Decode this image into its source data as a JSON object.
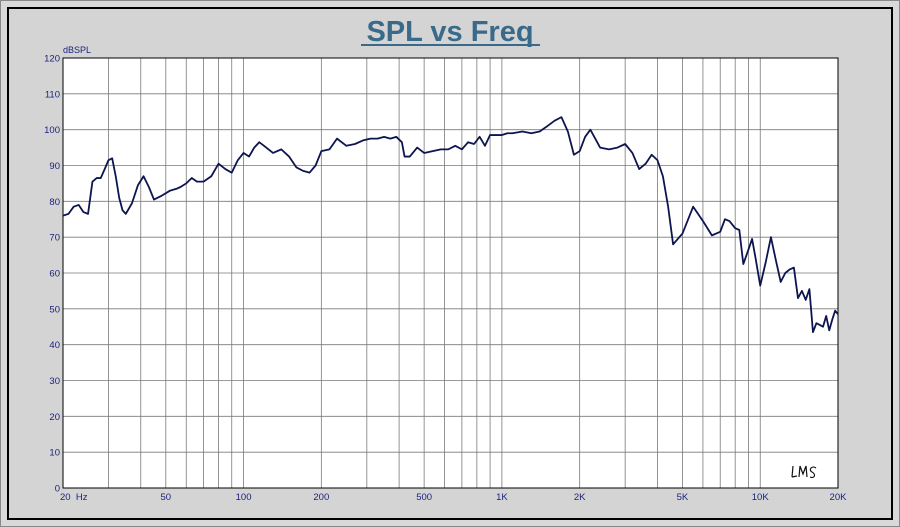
{
  "chart_data": {
    "type": "line",
    "title": "SPL vs Freq",
    "xlabel": "",
    "ylabel": "dBSPL",
    "x_scale": "log",
    "xlim": [
      20,
      20000
    ],
    "ylim": [
      0,
      120
    ],
    "grid": true,
    "x_tick_values": [
      20,
      50,
      100,
      200,
      500,
      1000,
      2000,
      5000,
      10000,
      20000
    ],
    "x_tick_labels": [
      "20  Hz",
      "50",
      "100",
      "200",
      "500",
      "1K",
      "2K",
      "5K",
      "10K",
      "20K"
    ],
    "y_ticks": [
      0,
      10,
      20,
      30,
      40,
      50,
      60,
      70,
      80,
      90,
      100,
      110,
      120
    ],
    "colors": {
      "line": "#0d1550",
      "grid": "#7a7a7a",
      "title": "#3a6a8a",
      "labels": "#1a237e"
    },
    "signature": "LMS",
    "series": [
      {
        "x": [
          20,
          21,
          22,
          23,
          24,
          25,
          26,
          27,
          28,
          29,
          30,
          31,
          32,
          33,
          34,
          35,
          37,
          39,
          41,
          43,
          45,
          48,
          52,
          55,
          57,
          60,
          63,
          66,
          70,
          75,
          80,
          85,
          90,
          95,
          100,
          105,
          110,
          115,
          120,
          130,
          140,
          150,
          160,
          170,
          180,
          190,
          200,
          215,
          230,
          250,
          270,
          290,
          310,
          330,
          350,
          370,
          390,
          410,
          420,
          440,
          470,
          500,
          540,
          580,
          620,
          660,
          700,
          740,
          780,
          820,
          860,
          900,
          950,
          1000,
          1050,
          1100,
          1200,
          1300,
          1400,
          1500,
          1600,
          1700,
          1800,
          1900,
          2000,
          2100,
          2200,
          2400,
          2600,
          2800,
          3000,
          3200,
          3400,
          3600,
          3800,
          4000,
          4200,
          4400,
          4600,
          5000,
          5500,
          6000,
          6500,
          7000,
          7300,
          7600,
          8000,
          8300,
          8600,
          9000,
          9300,
          9600,
          10000,
          10500,
          11000,
          11500,
          12000,
          12500,
          13000,
          13500,
          14000,
          14500,
          15000,
          15500,
          16000,
          16500,
          17000,
          17500,
          18000,
          18500,
          19000,
          19500,
          20000
        ],
        "y": [
          76,
          76.5,
          78.5,
          79,
          77,
          76.5,
          85.5,
          86.5,
          86.5,
          89,
          91.5,
          92,
          87,
          81,
          77.5,
          76.5,
          79.5,
          84.5,
          87,
          84,
          80.5,
          81.5,
          83,
          83.5,
          84,
          85,
          86.5,
          85.5,
          85.5,
          87,
          90.5,
          89,
          88,
          91.5,
          93.5,
          92.5,
          95,
          96.5,
          95.5,
          93.5,
          94.5,
          92.5,
          89.5,
          88.5,
          88,
          90,
          94,
          94.5,
          97.5,
          95.5,
          96,
          97,
          97.5,
          97.5,
          98,
          97.5,
          98,
          96.5,
          92.5,
          92.5,
          95,
          93.5,
          94,
          94.5,
          94.5,
          95.5,
          94.5,
          96.5,
          96,
          98,
          95.5,
          98.5,
          98.5,
          98.5,
          99,
          99,
          99.5,
          99,
          99.5,
          101,
          102.5,
          103.5,
          99.5,
          93,
          94,
          98,
          100,
          95,
          94.5,
          95,
          96,
          93.5,
          89,
          90.5,
          93,
          91.5,
          87,
          78.5,
          68,
          71,
          78.5,
          74.5,
          70.5,
          71.5,
          75,
          74.5,
          72.5,
          72,
          62.5,
          66.5,
          69.5,
          64,
          56.5,
          63,
          70,
          63.5,
          57.5,
          60,
          61,
          61.5,
          53,
          55,
          52.5,
          55.5,
          43.5,
          46,
          45.5,
          45,
          48,
          44,
          47,
          49.5,
          48.5
        ]
      }
    ]
  }
}
